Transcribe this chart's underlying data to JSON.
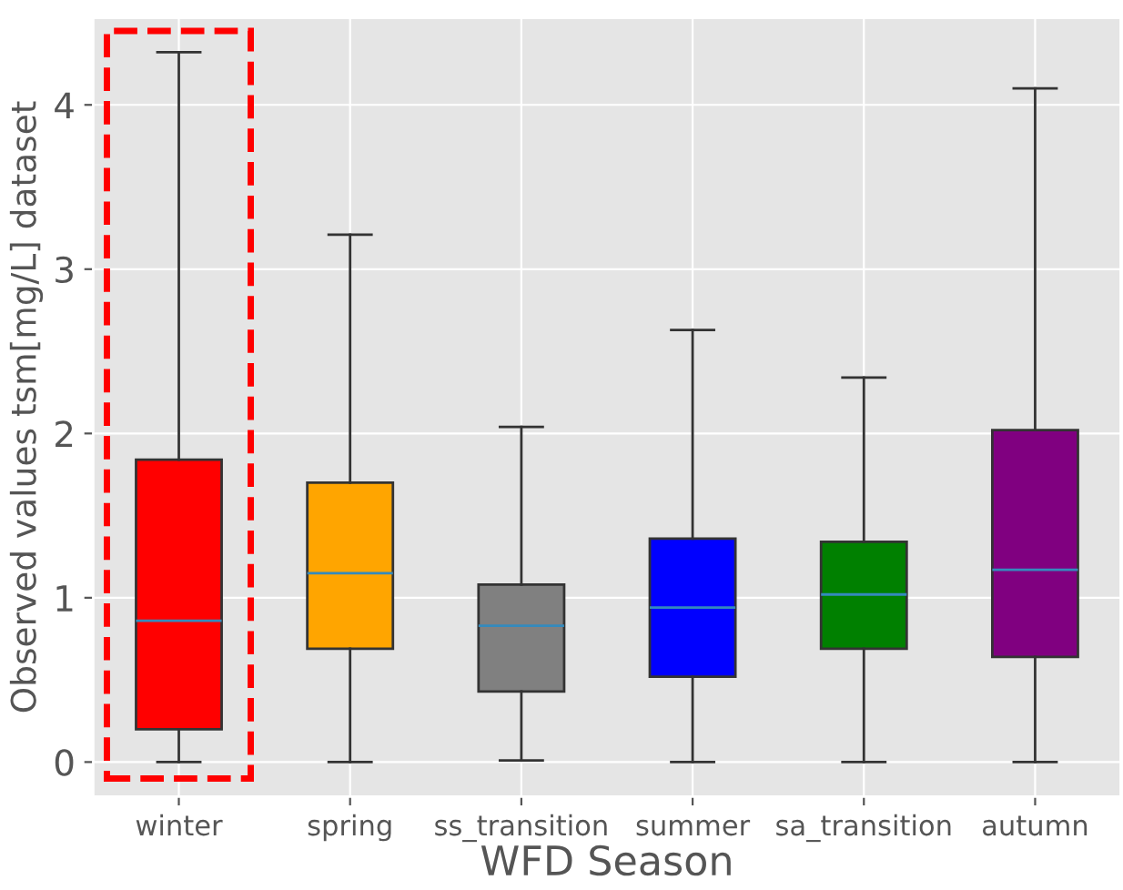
{
  "chart_data": {
    "type": "box",
    "xlabel": "WFD Season",
    "ylabel": "Observed values tsm[mg/L] dataset",
    "categories": [
      "winter",
      "spring",
      "ss_transition",
      "summer",
      "sa_transition",
      "autumn"
    ],
    "colors": [
      "#ff0000",
      "#ffa500",
      "#808080",
      "#0000ff",
      "#008000",
      "#800080"
    ],
    "boxes": [
      {
        "low": 0,
        "q1": 0.2,
        "median": 0.86,
        "q3": 1.84,
        "high": 4.32
      },
      {
        "low": 0,
        "q1": 0.69,
        "median": 1.15,
        "q3": 1.7,
        "high": 3.21
      },
      {
        "low": 0.01,
        "q1": 0.43,
        "median": 0.83,
        "q3": 1.08,
        "high": 2.04
      },
      {
        "low": 0,
        "q1": 0.52,
        "median": 0.94,
        "q3": 1.36,
        "high": 2.63
      },
      {
        "low": 0,
        "q1": 0.69,
        "median": 1.02,
        "q3": 1.34,
        "high": 2.34
      },
      {
        "low": 0,
        "q1": 0.64,
        "median": 1.17,
        "q3": 2.02,
        "high": 4.1
      }
    ],
    "ylim": [
      -0.21,
      4.53
    ],
    "yticks": [
      0,
      1,
      2,
      3,
      4
    ],
    "grid": true
  }
}
